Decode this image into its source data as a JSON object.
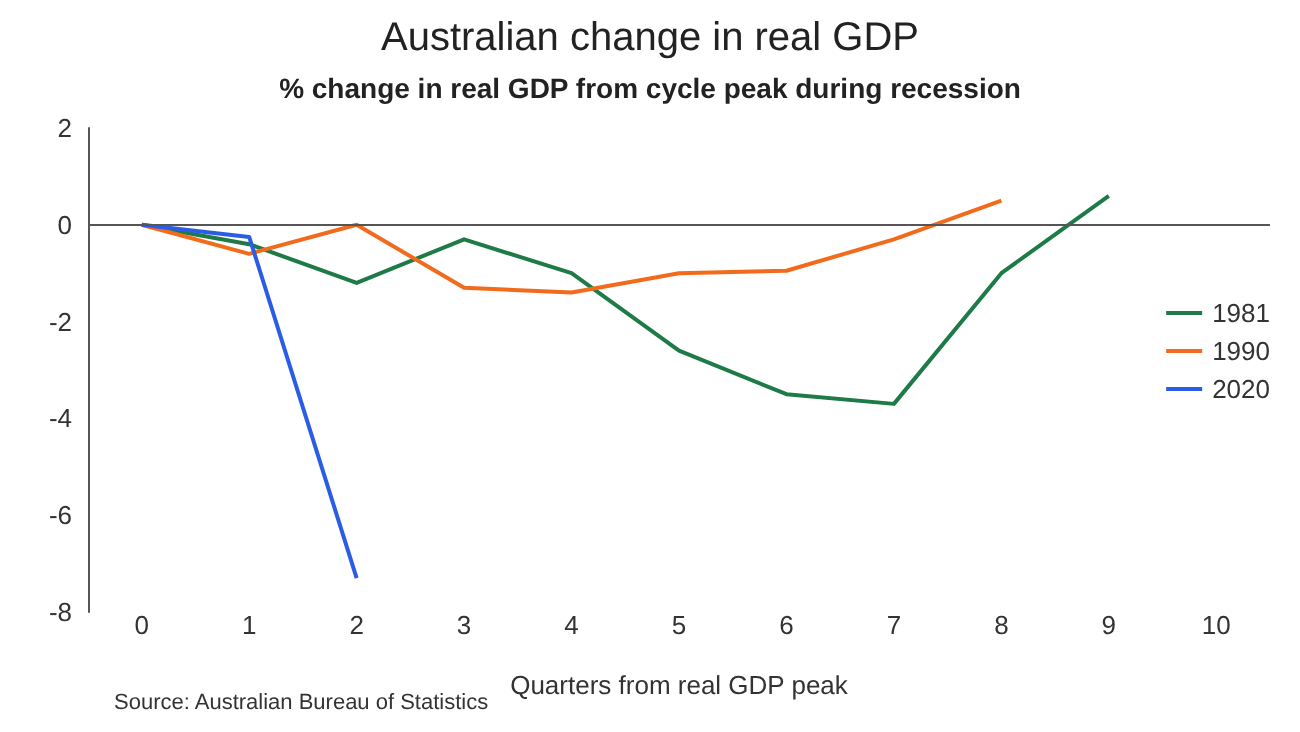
{
  "chart_data": {
    "type": "line",
    "title": "Australian change in real GDP",
    "subtitle": "% change in real GDP from cycle peak during recession",
    "xlabel": "Quarters from real GDP peak",
    "annotations": [
      "Source: Australian Bureau of Statistics"
    ],
    "categories": [
      "0",
      "1",
      "2",
      "3",
      "4",
      "5",
      "6",
      "7",
      "8",
      "9",
      "10"
    ],
    "series": [
      {
        "name": "1981",
        "color": "#1e7a46",
        "values": [
          0,
          -0.4,
          -1.2,
          -0.3,
          -1.0,
          -2.6,
          -3.5,
          -3.7,
          -1.0,
          0.6,
          null
        ]
      },
      {
        "name": "1990",
        "color": "#f26b1d",
        "values": [
          0,
          -0.6,
          0,
          -1.3,
          -1.4,
          -1.0,
          -0.95,
          -0.3,
          0.5,
          null,
          null
        ]
      },
      {
        "name": "2020",
        "color": "#2b5ce6",
        "values": [
          0,
          -0.25,
          -7.3,
          null,
          null,
          null,
          null,
          null,
          null,
          null,
          null
        ]
      }
    ],
    "ylim": [
      -8,
      2
    ],
    "yticks": [
      -8,
      -6,
      -4,
      -2,
      0,
      2
    ],
    "ref_lines": [
      {
        "axis": "y",
        "value": 0,
        "color": "#555555"
      }
    ],
    "grid": false,
    "legend": "right",
    "marker": "none"
  }
}
